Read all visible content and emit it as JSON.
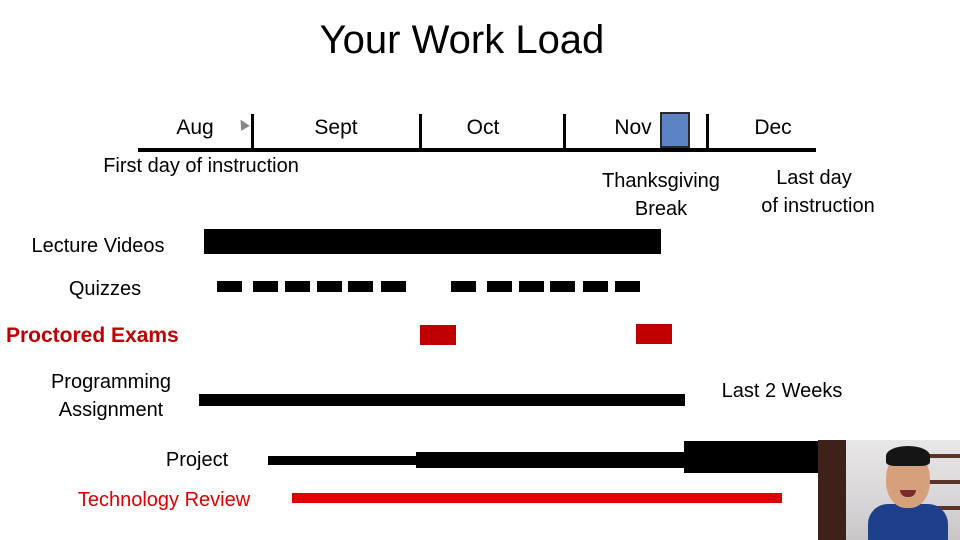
{
  "title": "Your Work Load",
  "months": [
    "Aug",
    "Sept",
    "Oct",
    "Nov",
    "Dec"
  ],
  "notes": {
    "first_day": "First day of instruction",
    "thanksgiving_line1": "Thanksgiving",
    "thanksgiving_line2": "Break",
    "last_day_line1": "Last day",
    "last_day_line2": "of instruction",
    "last_two_weeks": "Last 2 Weeks"
  },
  "tasks": {
    "lecture_videos": "Lecture Videos",
    "quizzes": "Quizzes",
    "proctored_exams": "Proctored Exams",
    "programming_line1": "Programming",
    "programming_line2": "Assignment",
    "project": "Project",
    "technology_review": "Technology Review"
  },
  "colors": {
    "break_fill": "#5b83c6",
    "exam_red": "#c00000",
    "review_red": "#e00000",
    "bar": "#000000"
  },
  "webcam": {
    "icon": "presenter-webcam-feed"
  }
}
